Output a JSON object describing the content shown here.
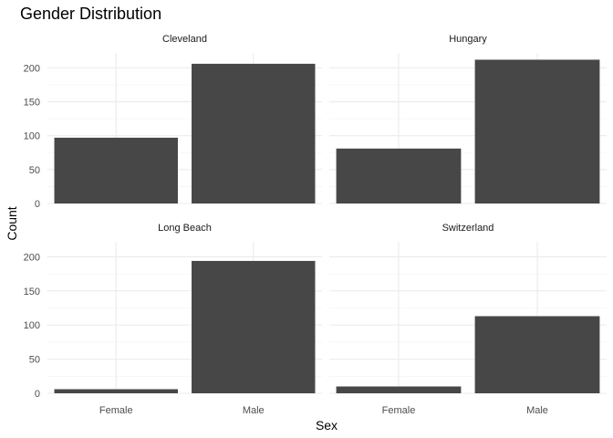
{
  "chart_data": {
    "type": "bar",
    "title": "Gender Distribution",
    "xlabel": "Sex",
    "ylabel": "Count",
    "categories": [
      "Female",
      "Male"
    ],
    "y_ticks": [
      0,
      50,
      100,
      150,
      200
    ],
    "ylim": [
      0,
      222
    ],
    "bar_color": "#474747",
    "grid": true,
    "facets": [
      {
        "name": "Cleveland",
        "values": [
          97,
          206
        ]
      },
      {
        "name": "Hungary",
        "values": [
          81,
          212
        ]
      },
      {
        "name": "Long Beach",
        "values": [
          6,
          194
        ]
      },
      {
        "name": "Switzerland",
        "values": [
          10,
          113
        ]
      }
    ]
  }
}
